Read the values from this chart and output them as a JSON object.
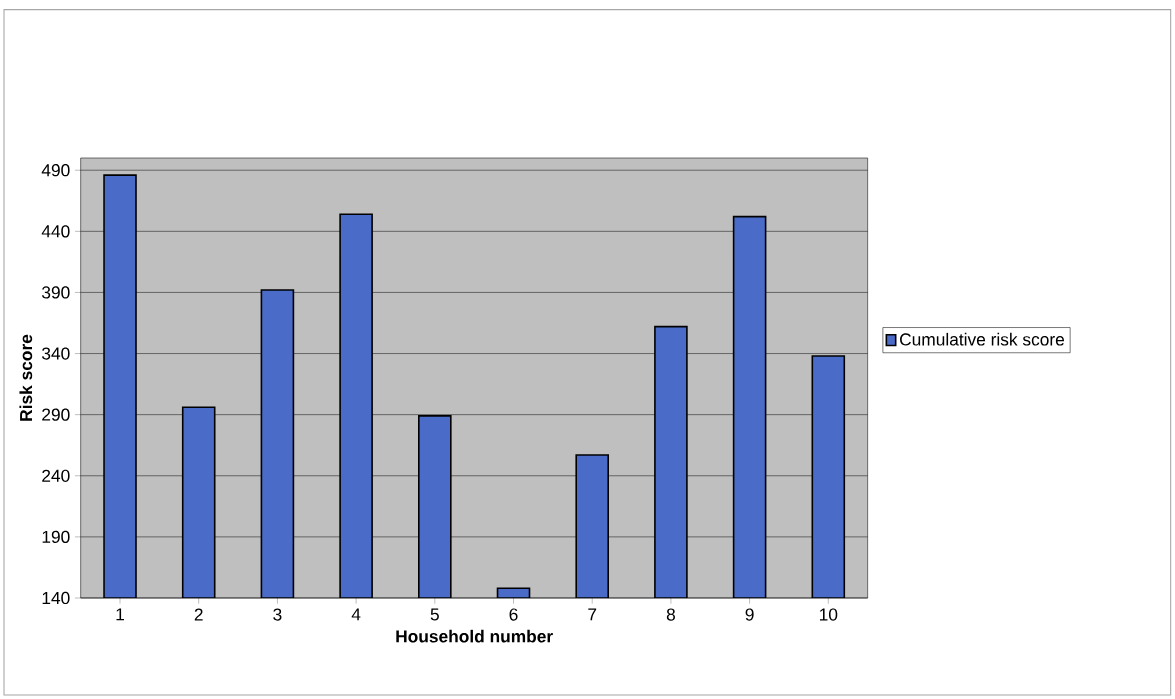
{
  "chart_data": {
    "type": "bar",
    "xlabel": "Household number",
    "ylabel": "Risk score",
    "categories": [
      "1",
      "2",
      "3",
      "4",
      "5",
      "6",
      "7",
      "8",
      "9",
      "10"
    ],
    "series": [
      {
        "name": "Cumulative risk score",
        "color": "#4a6cc8",
        "values": [
          486,
          296,
          392,
          454,
          289,
          148,
          257,
          362,
          452,
          338
        ]
      }
    ],
    "ylim": [
      140,
      500
    ],
    "yticks": [
      140,
      190,
      240,
      290,
      340,
      390,
      440,
      490
    ],
    "grid": "y",
    "legend": "right"
  }
}
